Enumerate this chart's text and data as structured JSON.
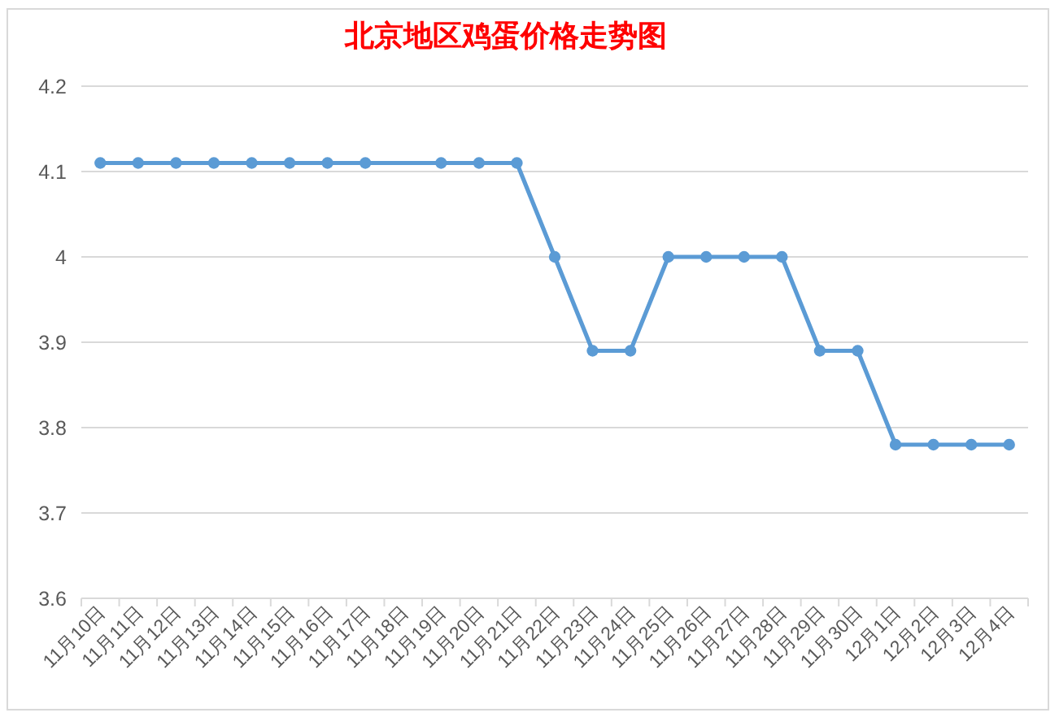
{
  "chart_data": {
    "type": "line",
    "title": "北京地区鸡蛋价格走势图",
    "categories": [
      "11月10日",
      "11月11日",
      "11月12日",
      "11月13日",
      "11月14日",
      "11月15日",
      "11月16日",
      "11月17日",
      "11月18日",
      "11月19日",
      "11月20日",
      "11月21日",
      "11月22日",
      "11月23日",
      "11月24日",
      "11月25日",
      "11月26日",
      "11月27日",
      "11月28日",
      "11月29日",
      "11月30日",
      "12月1日",
      "12月2日",
      "12月3日",
      "12月4日"
    ],
    "series": [
      {
        "color": "#5b9bd5",
        "values": [
          4.11,
          4.11,
          4.11,
          4.11,
          4.11,
          4.11,
          4.11,
          4.11,
          null,
          4.11,
          4.11,
          4.11,
          4.0,
          3.89,
          3.89,
          4.0,
          4.0,
          4.0,
          4.0,
          3.89,
          3.89,
          3.78,
          3.78,
          3.78,
          3.78
        ]
      }
    ],
    "ylim": [
      3.6,
      4.2
    ],
    "yticks": [
      3.6,
      3.7,
      3.8,
      3.9,
      4,
      4.1,
      4.2
    ],
    "grid": "y",
    "marker": "circle"
  }
}
